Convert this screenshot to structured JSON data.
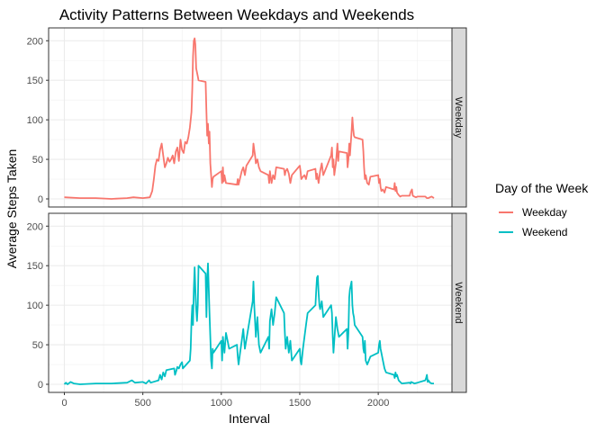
{
  "chart_data": {
    "type": "line",
    "title": "Activity Patterns Between Weekdays and Weekends",
    "xlabel": "Interval",
    "ylabel": "Average Steps Taken",
    "xlim": [
      0,
      2355
    ],
    "ylim": [
      0,
      206
    ],
    "x_ticks": [
      0,
      500,
      1000,
      1500,
      2000
    ],
    "y_ticks": [
      0,
      50,
      100,
      150,
      200
    ],
    "grid": true,
    "legend": {
      "title": "Day of the Week",
      "placement": "right"
    },
    "facets": [
      "Weekday",
      "Weekend"
    ],
    "series": [
      {
        "name": "Weekday",
        "color": "#F8766D",
        "points": [
          [
            0,
            2
          ],
          [
            100,
            1
          ],
          [
            200,
            1
          ],
          [
            300,
            0
          ],
          [
            400,
            1
          ],
          [
            440,
            2
          ],
          [
            500,
            1
          ],
          [
            545,
            2
          ],
          [
            560,
            10
          ],
          [
            570,
            25
          ],
          [
            580,
            42
          ],
          [
            590,
            50
          ],
          [
            600,
            48
          ],
          [
            610,
            62
          ],
          [
            620,
            70
          ],
          [
            630,
            55
          ],
          [
            640,
            40
          ],
          [
            650,
            45
          ],
          [
            660,
            52
          ],
          [
            670,
            47
          ],
          [
            680,
            50
          ],
          [
            690,
            55
          ],
          [
            700,
            45
          ],
          [
            710,
            60
          ],
          [
            720,
            65
          ],
          [
            730,
            48
          ],
          [
            740,
            75
          ],
          [
            750,
            62
          ],
          [
            760,
            58
          ],
          [
            770,
            72
          ],
          [
            780,
            70
          ],
          [
            790,
            78
          ],
          [
            800,
            90
          ],
          [
            810,
            110
          ],
          [
            815,
            140
          ],
          [
            820,
            180
          ],
          [
            825,
            200
          ],
          [
            830,
            203
          ],
          [
            835,
            195
          ],
          [
            840,
            165
          ],
          [
            845,
            160
          ],
          [
            850,
            155
          ],
          [
            855,
            150
          ],
          [
            900,
            148
          ],
          [
            905,
            110
          ],
          [
            910,
            80
          ],
          [
            915,
            95
          ],
          [
            920,
            70
          ],
          [
            925,
            85
          ],
          [
            930,
            45
          ],
          [
            935,
            30
          ],
          [
            940,
            15
          ],
          [
            945,
            25
          ],
          [
            950,
            28
          ],
          [
            1000,
            35
          ],
          [
            1005,
            20
          ],
          [
            1010,
            40
          ],
          [
            1015,
            22
          ],
          [
            1020,
            30
          ],
          [
            1030,
            20
          ],
          [
            1100,
            18
          ],
          [
            1105,
            25
          ],
          [
            1110,
            18
          ],
          [
            1130,
            35
          ],
          [
            1140,
            40
          ],
          [
            1150,
            30
          ],
          [
            1160,
            42
          ],
          [
            1200,
            55
          ],
          [
            1205,
            70
          ],
          [
            1210,
            62
          ],
          [
            1215,
            55
          ],
          [
            1220,
            45
          ],
          [
            1230,
            50
          ],
          [
            1240,
            40
          ],
          [
            1250,
            35
          ],
          [
            1300,
            30
          ],
          [
            1305,
            20
          ],
          [
            1310,
            35
          ],
          [
            1320,
            20
          ],
          [
            1330,
            30
          ],
          [
            1340,
            25
          ],
          [
            1350,
            40
          ],
          [
            1400,
            38
          ],
          [
            1405,
            30
          ],
          [
            1410,
            35
          ],
          [
            1420,
            38
          ],
          [
            1430,
            32
          ],
          [
            1440,
            20
          ],
          [
            1450,
            30
          ],
          [
            1500,
            42
          ],
          [
            1505,
            35
          ],
          [
            1510,
            25
          ],
          [
            1520,
            28
          ],
          [
            1530,
            30
          ],
          [
            1540,
            25
          ],
          [
            1550,
            35
          ],
          [
            1600,
            38
          ],
          [
            1605,
            25
          ],
          [
            1610,
            32
          ],
          [
            1620,
            20
          ],
          [
            1630,
            35
          ],
          [
            1640,
            45
          ],
          [
            1650,
            30
          ],
          [
            1700,
            55
          ],
          [
            1705,
            65
          ],
          [
            1710,
            40
          ],
          [
            1715,
            50
          ],
          [
            1720,
            30
          ],
          [
            1730,
            45
          ],
          [
            1740,
            70
          ],
          [
            1745,
            48
          ],
          [
            1750,
            60
          ],
          [
            1800,
            58
          ],
          [
            1805,
            40
          ],
          [
            1810,
            50
          ],
          [
            1815,
            70
          ],
          [
            1820,
            55
          ],
          [
            1830,
            85
          ],
          [
            1835,
            103
          ],
          [
            1840,
            90
          ],
          [
            1845,
            80
          ],
          [
            1850,
            78
          ],
          [
            1900,
            75
          ],
          [
            1905,
            60
          ],
          [
            1910,
            40
          ],
          [
            1915,
            25
          ],
          [
            1920,
            30
          ],
          [
            1930,
            20
          ],
          [
            1940,
            18
          ],
          [
            1950,
            28
          ],
          [
            2000,
            30
          ],
          [
            2005,
            20
          ],
          [
            2010,
            25
          ],
          [
            2015,
            15
          ],
          [
            2020,
            10
          ],
          [
            2030,
            12
          ],
          [
            2040,
            8
          ],
          [
            2050,
            15
          ],
          [
            2100,
            12
          ],
          [
            2105,
            20
          ],
          [
            2110,
            10
          ],
          [
            2115,
            15
          ],
          [
            2120,
            8
          ],
          [
            2130,
            5
          ],
          [
            2140,
            3
          ],
          [
            2150,
            4
          ],
          [
            2200,
            4
          ],
          [
            2205,
            8
          ],
          [
            2210,
            10
          ],
          [
            2215,
            12
          ],
          [
            2220,
            4
          ],
          [
            2230,
            3
          ],
          [
            2240,
            2
          ],
          [
            2250,
            3
          ],
          [
            2300,
            3
          ],
          [
            2305,
            2
          ],
          [
            2310,
            1
          ],
          [
            2320,
            1
          ],
          [
            2330,
            2
          ],
          [
            2340,
            3
          ],
          [
            2355,
            1
          ]
        ]
      },
      {
        "name": "Weekend",
        "color": "#00BFC4",
        "points": [
          [
            0,
            0
          ],
          [
            10,
            2
          ],
          [
            20,
            0
          ],
          [
            40,
            3
          ],
          [
            60,
            1
          ],
          [
            100,
            0
          ],
          [
            200,
            1
          ],
          [
            300,
            1
          ],
          [
            400,
            2
          ],
          [
            430,
            5
          ],
          [
            450,
            2
          ],
          [
            500,
            3
          ],
          [
            520,
            1
          ],
          [
            540,
            5
          ],
          [
            550,
            2
          ],
          [
            600,
            5
          ],
          [
            610,
            12
          ],
          [
            620,
            6
          ],
          [
            630,
            15
          ],
          [
            640,
            10
          ],
          [
            650,
            18
          ],
          [
            700,
            20
          ],
          [
            705,
            12
          ],
          [
            710,
            15
          ],
          [
            715,
            18
          ],
          [
            720,
            22
          ],
          [
            730,
            20
          ],
          [
            740,
            25
          ],
          [
            750,
            28
          ],
          [
            755,
            20
          ],
          [
            800,
            30
          ],
          [
            805,
            45
          ],
          [
            810,
            80
          ],
          [
            815,
            100
          ],
          [
            820,
            75
          ],
          [
            825,
            120
          ],
          [
            830,
            148
          ],
          [
            835,
            120
          ],
          [
            840,
            95
          ],
          [
            845,
            80
          ],
          [
            850,
            100
          ],
          [
            855,
            150
          ],
          [
            900,
            140
          ],
          [
            905,
            85
          ],
          [
            910,
            130
          ],
          [
            915,
            153
          ],
          [
            920,
            120
          ],
          [
            925,
            90
          ],
          [
            930,
            60
          ],
          [
            935,
            30
          ],
          [
            940,
            20
          ],
          [
            945,
            45
          ],
          [
            950,
            40
          ],
          [
            1000,
            55
          ],
          [
            1005,
            30
          ],
          [
            1010,
            60
          ],
          [
            1015,
            50
          ],
          [
            1020,
            40
          ],
          [
            1030,
            65
          ],
          [
            1040,
            55
          ],
          [
            1050,
            45
          ],
          [
            1100,
            50
          ],
          [
            1105,
            35
          ],
          [
            1110,
            25
          ],
          [
            1120,
            40
          ],
          [
            1130,
            55
          ],
          [
            1140,
            70
          ],
          [
            1150,
            45
          ],
          [
            1200,
            105
          ],
          [
            1205,
            130
          ],
          [
            1210,
            100
          ],
          [
            1215,
            80
          ],
          [
            1220,
            60
          ],
          [
            1230,
            85
          ],
          [
            1240,
            50
          ],
          [
            1250,
            40
          ],
          [
            1300,
            60
          ],
          [
            1305,
            45
          ],
          [
            1310,
            80
          ],
          [
            1320,
            95
          ],
          [
            1330,
            75
          ],
          [
            1340,
            90
          ],
          [
            1350,
            110
          ],
          [
            1400,
            90
          ],
          [
            1405,
            65
          ],
          [
            1410,
            45
          ],
          [
            1420,
            60
          ],
          [
            1430,
            40
          ],
          [
            1440,
            55
          ],
          [
            1450,
            30
          ],
          [
            1500,
            45
          ],
          [
            1505,
            30
          ],
          [
            1510,
            25
          ],
          [
            1520,
            45
          ],
          [
            1530,
            60
          ],
          [
            1540,
            75
          ],
          [
            1550,
            90
          ],
          [
            1600,
            100
          ],
          [
            1605,
            120
          ],
          [
            1610,
            135
          ],
          [
            1615,
            137
          ],
          [
            1620,
            115
          ],
          [
            1625,
            100
          ],
          [
            1630,
            95
          ],
          [
            1640,
            105
          ],
          [
            1650,
            85
          ],
          [
            1700,
            100
          ],
          [
            1705,
            90
          ],
          [
            1710,
            60
          ],
          [
            1715,
            40
          ],
          [
            1720,
            55
          ],
          [
            1730,
            85
          ],
          [
            1740,
            70
          ],
          [
            1750,
            60
          ],
          [
            1800,
            70
          ],
          [
            1805,
            45
          ],
          [
            1810,
            65
          ],
          [
            1815,
            110
          ],
          [
            1820,
            120
          ],
          [
            1830,
            130
          ],
          [
            1835,
            100
          ],
          [
            1840,
            90
          ],
          [
            1845,
            85
          ],
          [
            1850,
            75
          ],
          [
            1900,
            60
          ],
          [
            1905,
            45
          ],
          [
            1910,
            40
          ],
          [
            1915,
            55
          ],
          [
            1920,
            30
          ],
          [
            1930,
            25
          ],
          [
            1940,
            30
          ],
          [
            1950,
            35
          ],
          [
            2000,
            40
          ],
          [
            2005,
            50
          ],
          [
            2010,
            55
          ],
          [
            2015,
            45
          ],
          [
            2020,
            40
          ],
          [
            2030,
            30
          ],
          [
            2040,
            20
          ],
          [
            2050,
            15
          ],
          [
            2100,
            12
          ],
          [
            2105,
            8
          ],
          [
            2110,
            15
          ],
          [
            2115,
            10
          ],
          [
            2120,
            12
          ],
          [
            2130,
            5
          ],
          [
            2140,
            3
          ],
          [
            2150,
            1
          ],
          [
            2200,
            2
          ],
          [
            2205,
            1
          ],
          [
            2210,
            3
          ],
          [
            2220,
            2
          ],
          [
            2230,
            1
          ],
          [
            2250,
            2
          ],
          [
            2300,
            5
          ],
          [
            2305,
            8
          ],
          [
            2310,
            12
          ],
          [
            2315,
            3
          ],
          [
            2320,
            5
          ],
          [
            2330,
            2
          ],
          [
            2340,
            1
          ],
          [
            2355,
            1
          ]
        ]
      }
    ]
  }
}
